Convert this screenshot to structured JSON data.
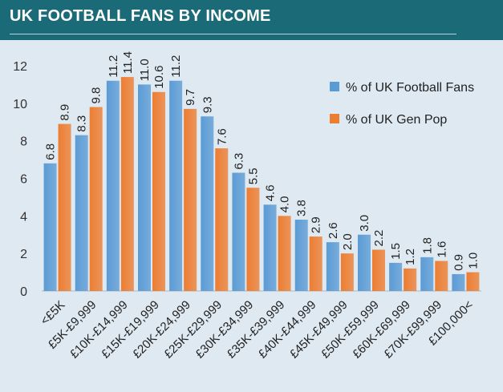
{
  "header": {
    "title": "UK FOOTBALL FANS BY INCOME"
  },
  "chart_data": {
    "type": "bar",
    "title": "UK FOOTBALL FANS BY INCOME",
    "categories": [
      "<£5K",
      "£5K-£9,999",
      "£10K-£14,999",
      "£15K-£19,999",
      "£20K-£24,999",
      "£25K-£29,999",
      "£30K-£34,999",
      "£35K-£39,999",
      "£40K-£44,999",
      "£45K-£49,999",
      "£50K-£59,999",
      "£60K-£69,999",
      "£70K-£99,999",
      "£100,000<"
    ],
    "series": [
      {
        "name": "% of UK Football Fans",
        "color": "#5b9bd5",
        "values": [
          6.8,
          8.3,
          11.2,
          11.0,
          11.2,
          9.3,
          6.3,
          4.6,
          3.8,
          2.6,
          3.0,
          1.5,
          1.8,
          0.9
        ]
      },
      {
        "name": "% of UK Gen Pop",
        "color": "#ed7d31",
        "values": [
          8.9,
          9.8,
          11.4,
          10.6,
          9.7,
          7.6,
          5.5,
          4.0,
          2.9,
          2.0,
          2.2,
          1.2,
          1.6,
          1.0
        ]
      }
    ],
    "data_labels": [
      [
        "6.8",
        "8.3",
        "11.2",
        "11.0",
        "11.2",
        "9.3",
        "6.3",
        "4.6",
        "3.8",
        "2.6",
        "3.0",
        "1.5",
        "1.8",
        "0.9"
      ],
      [
        "8.9",
        "9.8",
        "11.4",
        "10.6",
        "9.7",
        "7.6",
        "5.5",
        "4.0",
        "2.9",
        "2.0",
        "2.2",
        "1.2",
        "1.6",
        "1.0"
      ]
    ],
    "ylim": [
      0,
      12
    ],
    "yticks": [
      "0",
      "2",
      "4",
      "6",
      "8",
      "10",
      "12"
    ],
    "legend_position": "top-right",
    "grid": false
  }
}
